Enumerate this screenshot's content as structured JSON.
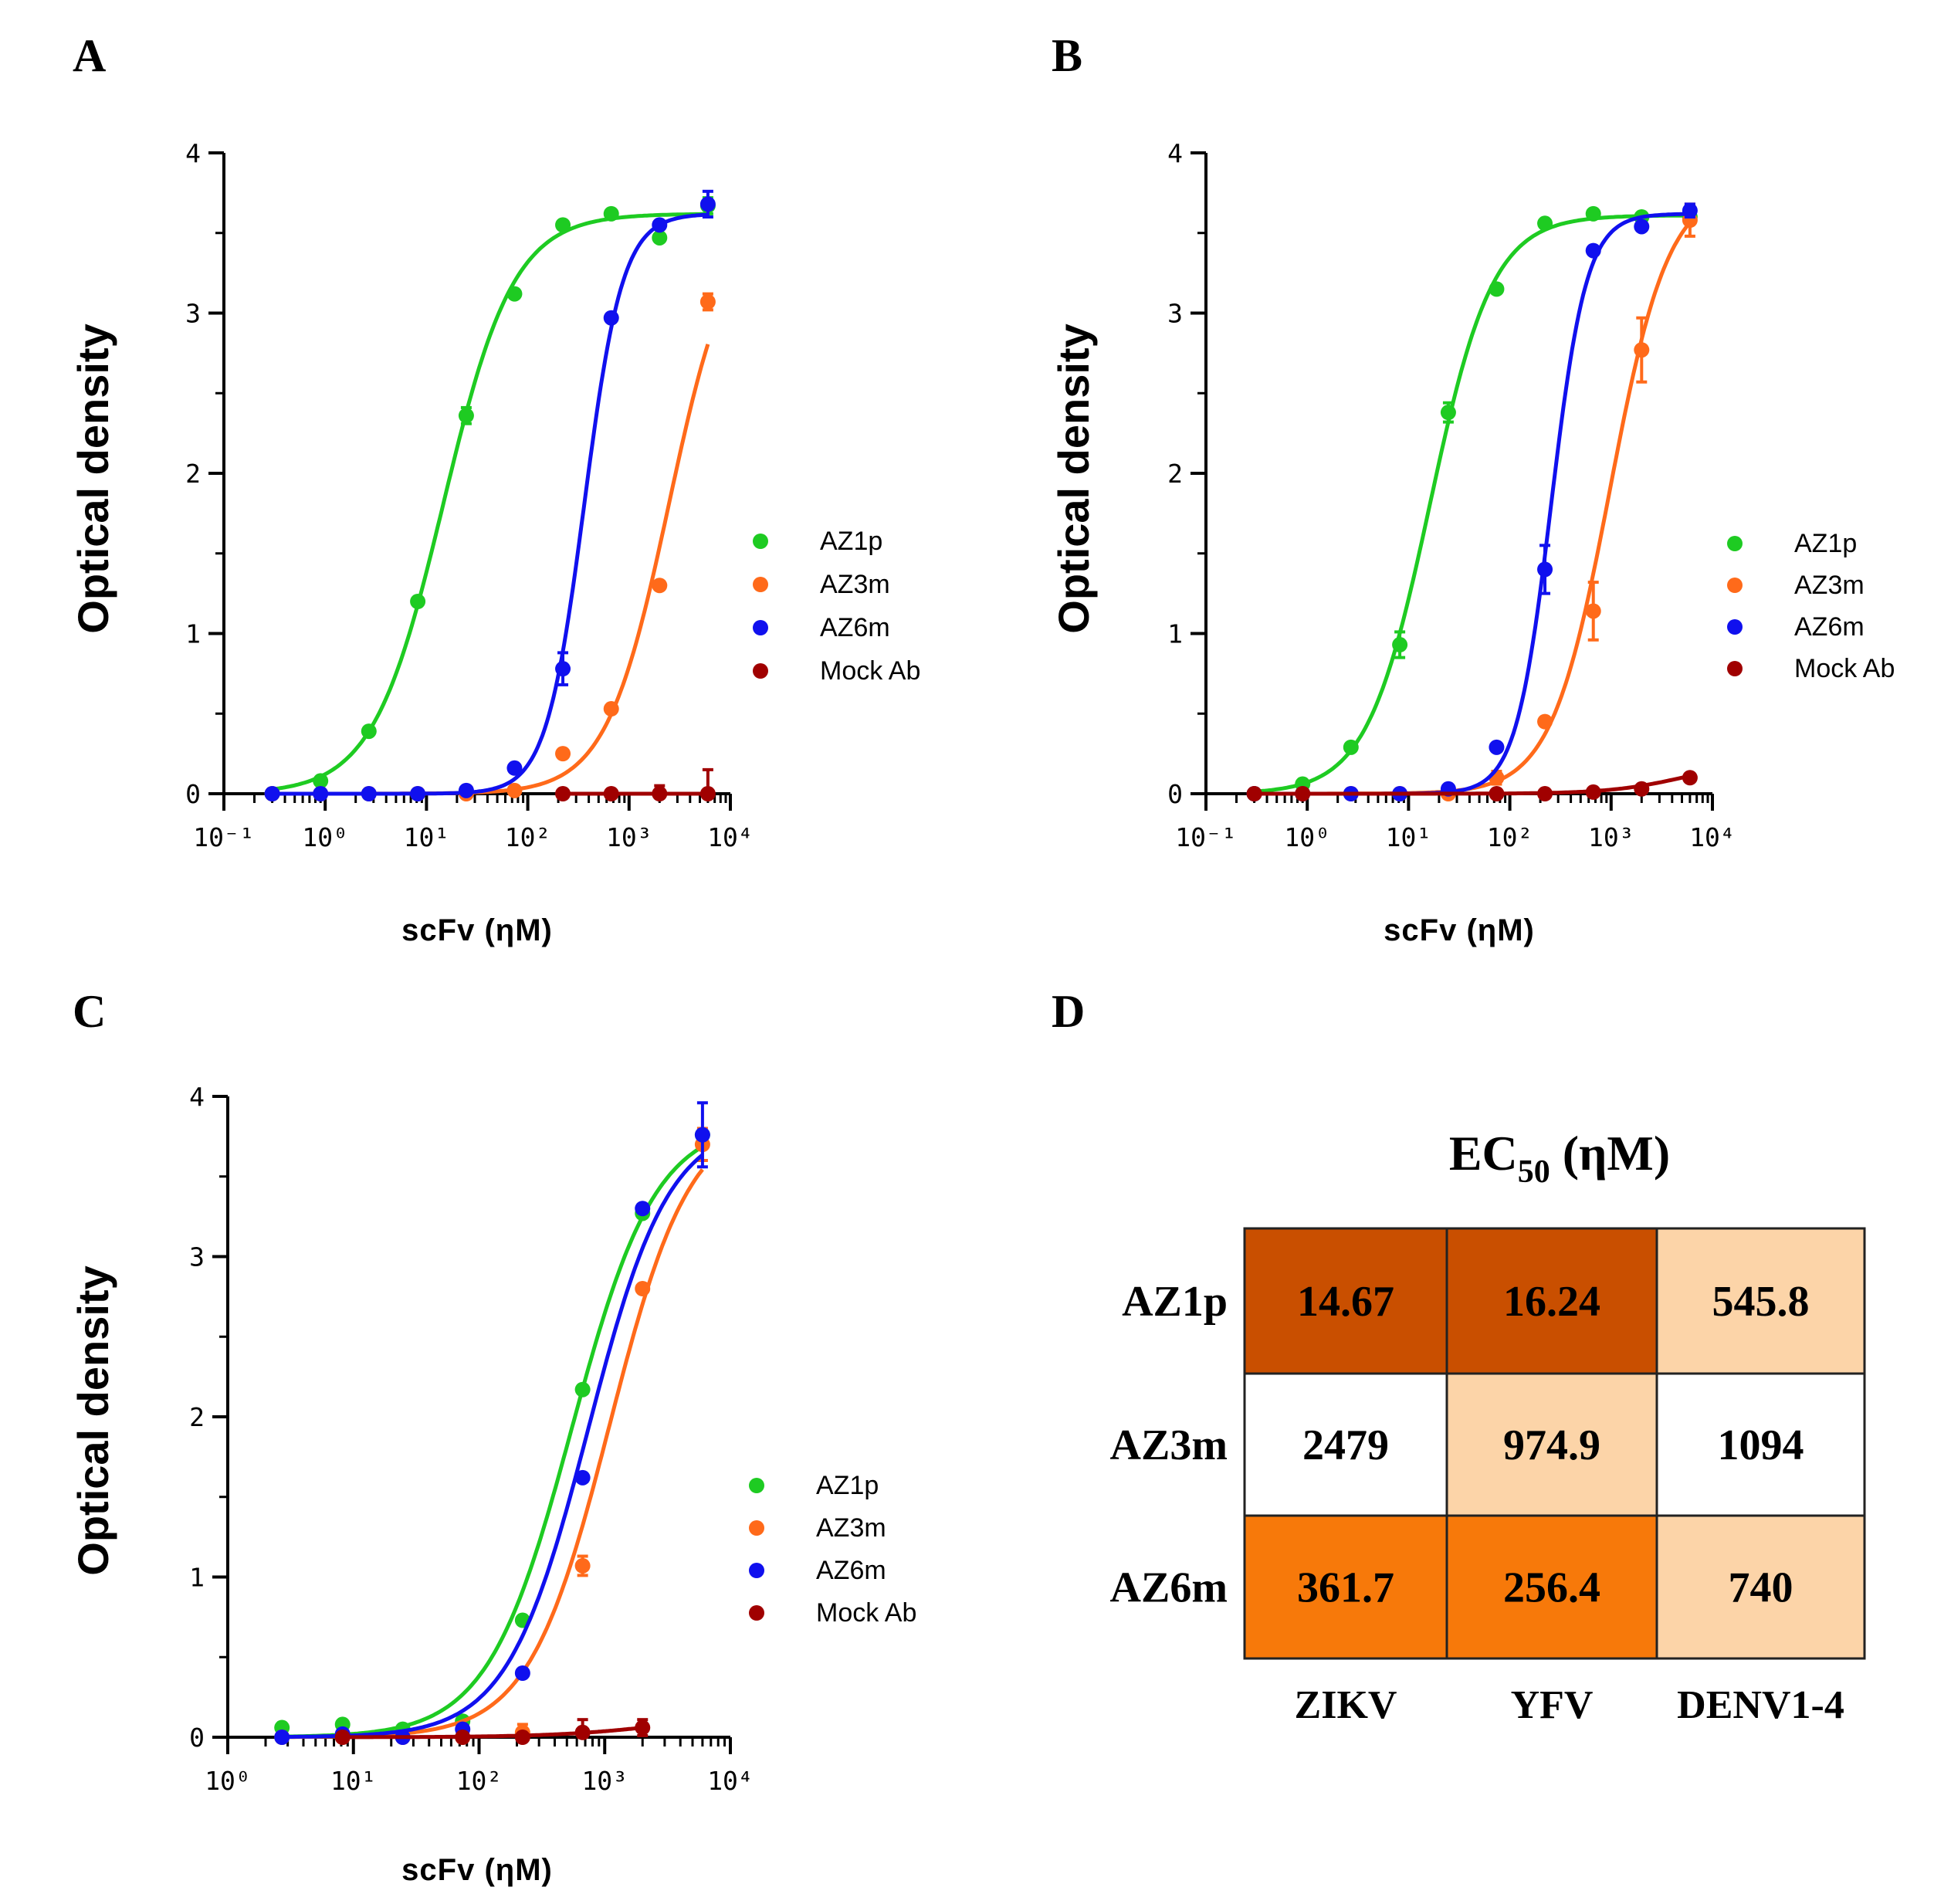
{
  "colors": {
    "AZ1p": "#1ecb22",
    "AZ3m": "#ff6a1a",
    "AZ6m": "#1010ee",
    "Mock Ab": "#a00000",
    "heat_dark": "#c94f00",
    "heat_mid": "#f7790a",
    "heat_light": "#fcd4a8",
    "heat_white": "#ffffff"
  },
  "chart_data": [
    {
      "panel": "A",
      "type": "scatter",
      "xscale": "log",
      "xlim": [
        0.1,
        10000
      ],
      "ylim": [
        0,
        4
      ],
      "xticks": [
        "10⁻¹",
        "10⁰",
        "10¹",
        "10²",
        "10³",
        "10⁴"
      ],
      "yticks": [
        "0",
        "1",
        "2",
        "3",
        "4"
      ],
      "xlabel": "scFv (ηM)",
      "ylabel": "Optical density",
      "legend": [
        "AZ1p",
        "AZ3m",
        "AZ6m",
        "Mock Ab"
      ],
      "legend_position": "right",
      "series": [
        {
          "name": "AZ1p",
          "x": [
            0.3,
            0.9,
            2.7,
            8.2,
            24.7,
            74,
            222,
            667,
            2000,
            6000
          ],
          "y": [
            0.0,
            0.08,
            0.39,
            1.2,
            2.36,
            3.12,
            3.55,
            3.62,
            3.47,
            3.67
          ],
          "err": [
            0,
            0,
            0,
            0,
            0.05,
            0,
            0,
            0,
            0,
            0.05
          ],
          "fit": {
            "bottom": 0.0,
            "top": 3.62,
            "ec50": 14.67,
            "hill": 1.25
          }
        },
        {
          "name": "AZ3m",
          "x": [
            0.3,
            0.9,
            2.7,
            8.2,
            24.7,
            74,
            222,
            667,
            2000,
            6000
          ],
          "y": [
            0.0,
            0.0,
            0.0,
            0.0,
            0.0,
            0.02,
            0.25,
            0.53,
            1.3,
            3.07
          ],
          "err": [
            0,
            0,
            0,
            0,
            0,
            0,
            0,
            0,
            0,
            0.05
          ],
          "fit": {
            "bottom": 0.0,
            "top": 3.62,
            "ec50": 2479,
            "hill": 1.4
          }
        },
        {
          "name": "AZ6m",
          "x": [
            0.3,
            0.9,
            2.7,
            8.2,
            24.7,
            74,
            222,
            667,
            2000,
            6000
          ],
          "y": [
            0.0,
            0.0,
            0.0,
            0.0,
            0.02,
            0.16,
            0.78,
            2.97,
            3.55,
            3.68
          ],
          "err": [
            0,
            0,
            0,
            0,
            0,
            0,
            0.1,
            0,
            0,
            0.08
          ],
          "fit": {
            "bottom": 0.0,
            "top": 3.62,
            "ec50": 361.7,
            "hill": 2.3
          }
        },
        {
          "name": "Mock Ab",
          "x": [
            222,
            667,
            2000,
            6000
          ],
          "y": [
            0.0,
            0.0,
            0.0,
            0.0
          ],
          "err": [
            0,
            0,
            0.05,
            0.15
          ],
          "fit": {
            "bottom": 0.0,
            "top": 0.0,
            "ec50": 1000,
            "hill": 1
          }
        }
      ]
    },
    {
      "panel": "B",
      "type": "scatter",
      "xscale": "log",
      "xlim": [
        0.1,
        10000
      ],
      "ylim": [
        0,
        4
      ],
      "xticks": [
        "10⁻¹",
        "10⁰",
        "10¹",
        "10²",
        "10³",
        "10⁴"
      ],
      "yticks": [
        "0",
        "1",
        "2",
        "3",
        "4"
      ],
      "xlabel": "scFv (ηM)",
      "ylabel": "Optical density",
      "legend": [
        "AZ1p",
        "AZ3m",
        "AZ6m",
        "Mock Ab"
      ],
      "legend_position": "right",
      "series": [
        {
          "name": "AZ1p",
          "x": [
            0.3,
            0.9,
            2.7,
            8.2,
            24.7,
            74,
            222,
            667,
            2000,
            6000
          ],
          "y": [
            0.0,
            0.06,
            0.29,
            0.93,
            2.38,
            3.15,
            3.56,
            3.62,
            3.6,
            3.6
          ],
          "err": [
            0,
            0,
            0,
            0.08,
            0.06,
            0,
            0,
            0,
            0,
            0
          ],
          "fit": {
            "bottom": 0.0,
            "top": 3.61,
            "ec50": 16.24,
            "hill": 1.4
          }
        },
        {
          "name": "AZ3m",
          "x": [
            0.3,
            0.9,
            2.7,
            8.2,
            24.7,
            74,
            222,
            667,
            2000,
            6000
          ],
          "y": [
            0.0,
            0.0,
            0.0,
            0.0,
            0.0,
            0.1,
            0.45,
            1.14,
            2.77,
            3.58
          ],
          "err": [
            0,
            0,
            0,
            0,
            0,
            0.04,
            0,
            0.18,
            0.2,
            0.1
          ],
          "fit": {
            "bottom": 0.0,
            "top": 3.8,
            "ec50": 974.9,
            "hill": 1.5
          }
        },
        {
          "name": "AZ6m",
          "x": [
            0.3,
            0.9,
            2.7,
            8.2,
            24.7,
            74,
            222,
            667,
            2000,
            6000
          ],
          "y": [
            0.0,
            0.0,
            0.0,
            0.0,
            0.03,
            0.29,
            1.4,
            3.39,
            3.54,
            3.64
          ],
          "err": [
            0,
            0,
            0,
            0,
            0,
            0,
            0.15,
            0,
            0,
            0.04
          ],
          "fit": {
            "bottom": 0.0,
            "top": 3.62,
            "ec50": 256.4,
            "hill": 2.5
          }
        },
        {
          "name": "Mock Ab",
          "x": [
            0.3,
            0.9,
            74,
            222,
            667,
            2000,
            6000
          ],
          "y": [
            0.0,
            0.0,
            0.0,
            0.0,
            0.01,
            0.03,
            0.1
          ],
          "err": [
            0,
            0,
            0,
            0,
            0,
            0,
            0
          ],
          "fit": {
            "bottom": 0.0,
            "top": 0.2,
            "ec50": 5000,
            "hill": 1.2
          }
        }
      ]
    },
    {
      "panel": "C",
      "type": "scatter",
      "xscale": "log",
      "xlim": [
        1,
        10000
      ],
      "ylim": [
        0,
        4
      ],
      "xticks": [
        "10⁰",
        "10¹",
        "10²",
        "10³",
        "10⁴"
      ],
      "yticks": [
        "0",
        "1",
        "2",
        "3",
        "4"
      ],
      "xlabel": "scFv (ηM)",
      "ylabel": "Optical density",
      "legend": [
        "AZ1p",
        "AZ3m",
        "AZ6m",
        "Mock Ab"
      ],
      "legend_position": "right",
      "series": [
        {
          "name": "AZ1p",
          "x": [
            2.7,
            8.2,
            24.7,
            74,
            222,
            667,
            2000,
            6000
          ],
          "y": [
            0.06,
            0.08,
            0.05,
            0.1,
            0.73,
            2.17,
            3.27,
            3.76
          ],
          "err": [
            0,
            0,
            0,
            0,
            0,
            0,
            0,
            0
          ],
          "fit": {
            "bottom": 0.0,
            "top": 3.85,
            "ec50": 545.8,
            "hill": 1.3
          }
        },
        {
          "name": "AZ3m",
          "x": [
            2.7,
            8.2,
            24.7,
            74,
            222,
            667,
            2000,
            6000
          ],
          "y": [
            0.0,
            0.0,
            0.0,
            0.0,
            0.03,
            1.07,
            2.8,
            3.7
          ],
          "err": [
            0,
            0,
            0,
            0,
            0.05,
            0.06,
            0,
            0.1
          ],
          "fit": {
            "bottom": 0.0,
            "top": 3.9,
            "ec50": 1094,
            "hill": 1.35
          }
        },
        {
          "name": "AZ6m",
          "x": [
            2.7,
            8.2,
            24.7,
            74,
            222,
            667,
            2000,
            6000
          ],
          "y": [
            0.0,
            0.02,
            0.0,
            0.05,
            0.4,
            1.62,
            3.3,
            3.76
          ],
          "err": [
            0,
            0,
            0,
            0,
            0,
            0,
            0,
            0.2
          ],
          "fit": {
            "bottom": 0.0,
            "top": 3.85,
            "ec50": 740,
            "hill": 1.35
          }
        },
        {
          "name": "Mock Ab",
          "x": [
            8.2,
            74,
            222,
            667,
            2000
          ],
          "y": [
            0.0,
            0.0,
            0.0,
            0.03,
            0.06
          ],
          "err": [
            0,
            0,
            0,
            0.08,
            0.05
          ],
          "fit": {
            "bottom": 0.0,
            "top": 0.15,
            "ec50": 3000,
            "hill": 1
          }
        }
      ]
    },
    {
      "panel": "D",
      "type": "heatmap",
      "title": "EC",
      "title_sub": "50",
      "title_tail": " (ηM)",
      "rows": [
        "AZ1p",
        "AZ3m",
        "AZ6m"
      ],
      "columns": [
        "ZIKV",
        "YFV",
        "DENV1-4"
      ],
      "cells": [
        [
          {
            "text": "14.67",
            "color": "heat_dark"
          },
          {
            "text": "16.24",
            "color": "heat_dark"
          },
          {
            "text": "545.8",
            "color": "heat_light"
          }
        ],
        [
          {
            "text": "2479",
            "color": "heat_white"
          },
          {
            "text": "974.9",
            "color": "heat_light"
          },
          {
            "text": "1094",
            "color": "heat_white"
          }
        ],
        [
          {
            "text": "361.7",
            "color": "heat_mid"
          },
          {
            "text": "256.4",
            "color": "heat_mid"
          },
          {
            "text": "740",
            "color": "heat_light"
          }
        ]
      ]
    }
  ],
  "panel_labels": [
    "A",
    "B",
    "C",
    "D"
  ]
}
